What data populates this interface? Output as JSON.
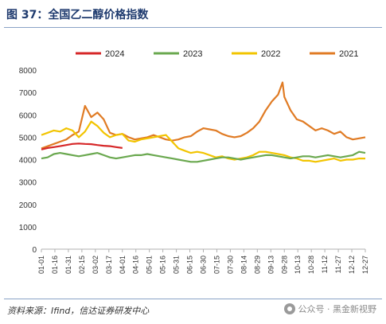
{
  "header": {
    "title": "图 37：全国乙二醇价格指数"
  },
  "footer": {
    "source": "资料来源：Ifind，信达证券研发中心",
    "watermark": "公众号 · 黑金新视野",
    "watermark_icon": "wechat-icon"
  },
  "chart_data": {
    "type": "line",
    "title": "",
    "xlabel": "",
    "ylabel": "",
    "ylim": [
      0,
      8000
    ],
    "yticks": [
      0,
      1000,
      2000,
      3000,
      4000,
      5000,
      6000,
      7000,
      8000
    ],
    "xticks": [
      "01-01",
      "01-16",
      "01-31",
      "02-15",
      "03-02",
      "03-17",
      "04-01",
      "04-16",
      "05-01",
      "05-16",
      "05-31",
      "06-15",
      "06-30",
      "07-15",
      "07-30",
      "08-14",
      "08-29",
      "09-13",
      "09-28",
      "10-13",
      "10-28",
      "11-12",
      "11-27",
      "12-12",
      "12-27"
    ],
    "x_range_days": [
      1,
      365
    ],
    "grid": false,
    "legend": "top",
    "series": [
      {
        "name": "2024",
        "color": "#d62728",
        "points": [
          [
            1,
            4450
          ],
          [
            8,
            4520
          ],
          [
            15,
            4560
          ],
          [
            22,
            4600
          ],
          [
            29,
            4650
          ],
          [
            36,
            4700
          ],
          [
            43,
            4720
          ],
          [
            50,
            4700
          ],
          [
            57,
            4690
          ],
          [
            64,
            4650
          ],
          [
            71,
            4620
          ],
          [
            78,
            4600
          ],
          [
            85,
            4560
          ],
          [
            92,
            4520
          ]
        ]
      },
      {
        "name": "2023",
        "color": "#6aa84f",
        "points": [
          [
            1,
            4050
          ],
          [
            8,
            4100
          ],
          [
            15,
            4250
          ],
          [
            22,
            4300
          ],
          [
            29,
            4250
          ],
          [
            36,
            4200
          ],
          [
            43,
            4150
          ],
          [
            50,
            4200
          ],
          [
            57,
            4250
          ],
          [
            64,
            4300
          ],
          [
            71,
            4200
          ],
          [
            78,
            4100
          ],
          [
            85,
            4050
          ],
          [
            92,
            4100
          ],
          [
            99,
            4150
          ],
          [
            106,
            4200
          ],
          [
            113,
            4200
          ],
          [
            120,
            4250
          ],
          [
            127,
            4200
          ],
          [
            134,
            4150
          ],
          [
            141,
            4100
          ],
          [
            148,
            4050
          ],
          [
            155,
            4000
          ],
          [
            162,
            3950
          ],
          [
            169,
            3900
          ],
          [
            176,
            3900
          ],
          [
            183,
            3950
          ],
          [
            190,
            4000
          ],
          [
            197,
            4050
          ],
          [
            204,
            4100
          ],
          [
            211,
            4100
          ],
          [
            218,
            4050
          ],
          [
            225,
            4000
          ],
          [
            232,
            4050
          ],
          [
            239,
            4100
          ],
          [
            246,
            4150
          ],
          [
            253,
            4200
          ],
          [
            260,
            4200
          ],
          [
            267,
            4150
          ],
          [
            274,
            4100
          ],
          [
            281,
            4050
          ],
          [
            288,
            4100
          ],
          [
            295,
            4150
          ],
          [
            302,
            4150
          ],
          [
            309,
            4100
          ],
          [
            316,
            4150
          ],
          [
            323,
            4200
          ],
          [
            330,
            4150
          ],
          [
            337,
            4100
          ],
          [
            344,
            4150
          ],
          [
            351,
            4200
          ],
          [
            358,
            4350
          ],
          [
            365,
            4300
          ]
        ]
      },
      {
        "name": "2022",
        "color": "#f2c400",
        "points": [
          [
            1,
            5100
          ],
          [
            8,
            5200
          ],
          [
            15,
            5300
          ],
          [
            22,
            5250
          ],
          [
            29,
            5400
          ],
          [
            36,
            5300
          ],
          [
            43,
            5000
          ],
          [
            50,
            5250
          ],
          [
            57,
            5700
          ],
          [
            64,
            5500
          ],
          [
            71,
            5200
          ],
          [
            78,
            5000
          ],
          [
            85,
            5100
          ],
          [
            92,
            5150
          ],
          [
            99,
            4850
          ],
          [
            106,
            4800
          ],
          [
            113,
            4900
          ],
          [
            120,
            4950
          ],
          [
            127,
            5000
          ],
          [
            134,
            5050
          ],
          [
            141,
            5100
          ],
          [
            148,
            4800
          ],
          [
            155,
            4500
          ],
          [
            162,
            4400
          ],
          [
            169,
            4300
          ],
          [
            176,
            4350
          ],
          [
            183,
            4300
          ],
          [
            190,
            4200
          ],
          [
            197,
            4100
          ],
          [
            204,
            4150
          ],
          [
            211,
            4050
          ],
          [
            218,
            4000
          ],
          [
            225,
            4050
          ],
          [
            232,
            4100
          ],
          [
            239,
            4200
          ],
          [
            246,
            4350
          ],
          [
            253,
            4350
          ],
          [
            260,
            4300
          ],
          [
            267,
            4250
          ],
          [
            274,
            4200
          ],
          [
            281,
            4100
          ],
          [
            288,
            4050
          ],
          [
            295,
            3950
          ],
          [
            302,
            3950
          ],
          [
            309,
            3900
          ],
          [
            316,
            3950
          ],
          [
            323,
            4000
          ],
          [
            330,
            4050
          ],
          [
            337,
            3950
          ],
          [
            344,
            4000
          ],
          [
            351,
            4000
          ],
          [
            358,
            4050
          ],
          [
            365,
            4050
          ]
        ]
      },
      {
        "name": "2021",
        "color": "#e07b24",
        "points": [
          [
            1,
            4500
          ],
          [
            8,
            4600
          ],
          [
            15,
            4700
          ],
          [
            22,
            4800
          ],
          [
            29,
            4900
          ],
          [
            36,
            5100
          ],
          [
            43,
            5250
          ],
          [
            50,
            6400
          ],
          [
            57,
            5900
          ],
          [
            64,
            6100
          ],
          [
            71,
            5800
          ],
          [
            78,
            5200
          ],
          [
            85,
            5100
          ],
          [
            92,
            5150
          ],
          [
            99,
            5000
          ],
          [
            106,
            4900
          ],
          [
            113,
            4950
          ],
          [
            120,
            5000
          ],
          [
            127,
            5100
          ],
          [
            134,
            5000
          ],
          [
            141,
            4900
          ],
          [
            148,
            4850
          ],
          [
            155,
            4900
          ],
          [
            162,
            5000
          ],
          [
            169,
            5050
          ],
          [
            176,
            5250
          ],
          [
            183,
            5400
          ],
          [
            190,
            5350
          ],
          [
            197,
            5300
          ],
          [
            204,
            5150
          ],
          [
            211,
            5050
          ],
          [
            218,
            5000
          ],
          [
            225,
            5050
          ],
          [
            232,
            5200
          ],
          [
            239,
            5400
          ],
          [
            246,
            5700
          ],
          [
            253,
            6200
          ],
          [
            260,
            6600
          ],
          [
            267,
            6900
          ],
          [
            272,
            7450
          ],
          [
            274,
            6800
          ],
          [
            281,
            6200
          ],
          [
            288,
            5800
          ],
          [
            295,
            5700
          ],
          [
            302,
            5500
          ],
          [
            309,
            5300
          ],
          [
            316,
            5400
          ],
          [
            323,
            5300
          ],
          [
            330,
            5150
          ],
          [
            337,
            5250
          ],
          [
            344,
            5000
          ],
          [
            351,
            4900
          ],
          [
            358,
            4950
          ],
          [
            365,
            5000
          ]
        ]
      }
    ]
  }
}
